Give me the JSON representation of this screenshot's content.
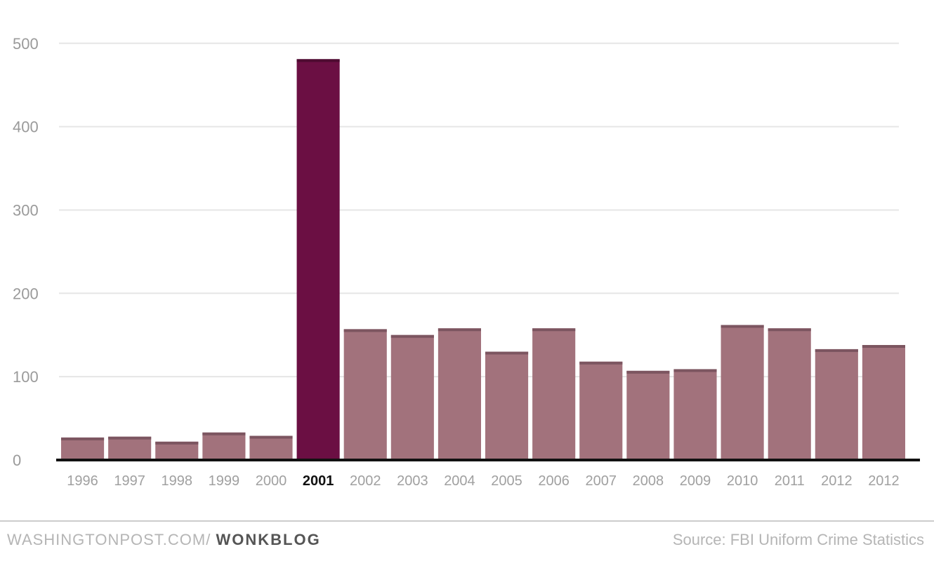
{
  "footer": {
    "publisher": "WASHINGTONPOST.COM/",
    "blog": "WONKBLOG",
    "source": "Source: FBI Uniform Crime Statistics"
  },
  "colors": {
    "bar": "#a2727c",
    "highlight_bar": "#6b0f43",
    "axis": "#111111",
    "grid": "#e6e6e6"
  },
  "chart_data": {
    "type": "bar",
    "title": "",
    "xlabel": "",
    "ylabel": "",
    "ylim": [
      0,
      520
    ],
    "yticks": [
      0,
      100,
      200,
      300,
      400,
      500
    ],
    "grid": "horizontal",
    "categories": [
      "1996",
      "1997",
      "1998",
      "1999",
      "2000",
      "2001",
      "2002",
      "2003",
      "2004",
      "2005",
      "2006",
      "2007",
      "2008",
      "2009",
      "2010",
      "2011",
      "2012",
      "2012"
    ],
    "values": [
      27,
      28,
      22,
      33,
      29,
      481,
      157,
      150,
      158,
      130,
      158,
      118,
      107,
      109,
      162,
      158,
      133,
      138
    ],
    "highlight_category": "2001"
  }
}
